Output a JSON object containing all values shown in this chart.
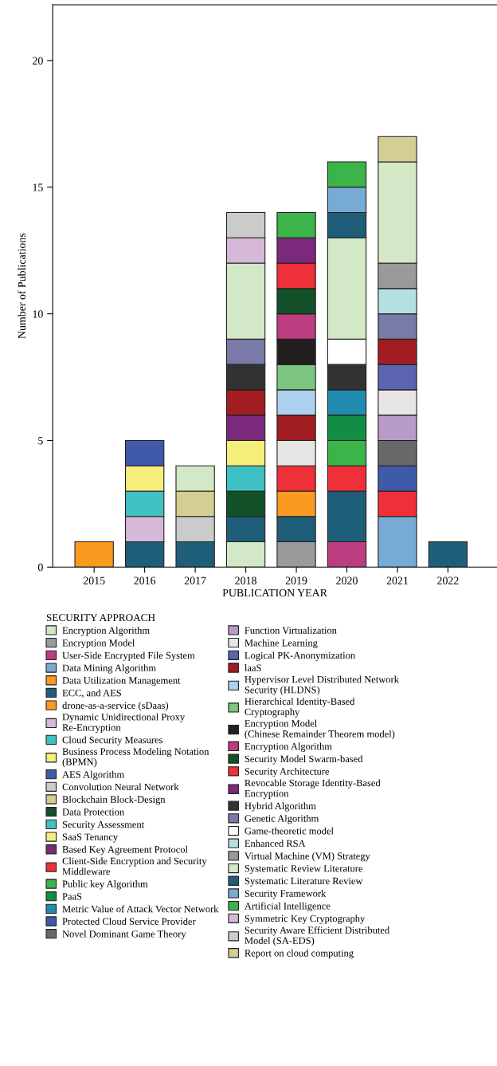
{
  "chart_data": {
    "type": "bar",
    "stacked": true,
    "xlabel": "PUBLICATION YEAR",
    "ylabel": "Number of Publications",
    "legend_title": "SECURITY APPROACH",
    "legend": "bottom",
    "categories": [
      "2015",
      "2016",
      "2017",
      "2018",
      "2019",
      "2020",
      "2021",
      "2022"
    ],
    "ylim": [
      0,
      22.2
    ],
    "yticks": [
      0,
      5,
      10,
      15,
      20
    ],
    "series": [
      {
        "name": "Encryption Algorithm",
        "color": "#d2e8c6",
        "values": [
          null,
          null,
          null,
          1,
          null,
          null,
          null,
          null
        ]
      },
      {
        "name": "Encryption Model",
        "color": "#9a9a9a",
        "values": [
          null,
          null,
          null,
          null,
          1,
          null,
          null,
          null
        ]
      },
      {
        "name": "User-Side Encrypted File System",
        "color": "#bc3d80",
        "values": [
          null,
          null,
          null,
          null,
          null,
          1,
          null,
          null
        ]
      },
      {
        "name": "Data Mining Algorithm",
        "color": "#78aad6",
        "values": [
          null,
          null,
          null,
          null,
          null,
          null,
          2,
          null
        ]
      },
      {
        "name": "Data Utilization Management",
        "color": "#f99b20",
        "values": [
          1,
          null,
          null,
          null,
          null,
          null,
          null,
          null
        ]
      },
      {
        "name": "ECC, and AES",
        "color": "#1f5e78",
        "values": [
          null,
          1,
          1,
          1,
          1,
          2,
          null,
          1
        ]
      },
      {
        "name": "drone-as-a-service (sDaas)",
        "color": "#f99b20",
        "values": [
          null,
          null,
          null,
          null,
          1,
          null,
          null,
          null
        ]
      },
      {
        "name": "Dynamic Unidirectional Proxy\nRe-Encryption",
        "color": "#d6b8d8",
        "values": [
          null,
          1,
          null,
          null,
          null,
          null,
          null,
          null
        ]
      },
      {
        "name": "Cloud Security Measures",
        "color": "#3fc1c4",
        "values": [
          null,
          1,
          null,
          null,
          null,
          null,
          null,
          null
        ]
      },
      {
        "name": "Business Process Modeling Notation\n(BPMN)",
        "color": "#f5ee7a",
        "values": [
          null,
          1,
          null,
          null,
          null,
          null,
          null,
          null
        ]
      },
      {
        "name": "AES Algorithm",
        "color": "#3f5aa8",
        "values": [
          null,
          1,
          null,
          null,
          null,
          null,
          null,
          null
        ]
      },
      {
        "name": "Convolution Neural Network",
        "color": "#cbcbcb",
        "values": [
          null,
          null,
          1,
          null,
          null,
          null,
          null,
          null
        ]
      },
      {
        "name": "Blockchain Block-Design",
        "color": "#d4cd94",
        "values": [
          null,
          null,
          1,
          null,
          null,
          null,
          null,
          null
        ]
      },
      {
        "name": "Data Protection",
        "color": "#125128",
        "values": [
          null,
          null,
          null,
          1,
          null,
          null,
          null,
          null
        ]
      },
      {
        "name": "Security Assessment",
        "color": "#3fc1c4",
        "values": [
          null,
          null,
          null,
          1,
          null,
          null,
          null,
          null
        ]
      },
      {
        "name": "SaaS Tenancy",
        "color": "#f5ee7a",
        "values": [
          null,
          null,
          null,
          1,
          null,
          null,
          null,
          null
        ]
      },
      {
        "name": "Based Key Agreement Protocol",
        "color": "#7b2a7b",
        "values": [
          null,
          null,
          null,
          1,
          null,
          null,
          null,
          null
        ]
      },
      {
        "name": "Client-Side Encryption and Security\nMiddleware",
        "color": "#ee3039",
        "values": [
          null,
          null,
          null,
          null,
          1,
          1,
          1,
          null
        ]
      },
      {
        "name": "Public key Algorithm",
        "color": "#3bb44a",
        "values": [
          null,
          null,
          null,
          null,
          null,
          1,
          null,
          null
        ]
      },
      {
        "name": "PaaS",
        "color": "#118e44",
        "values": [
          null,
          null,
          null,
          null,
          null,
          1,
          null,
          null
        ]
      },
      {
        "name": "Metric Value of Attack Vector Network",
        "color": "#228bb0",
        "values": [
          null,
          null,
          null,
          null,
          null,
          1,
          null,
          null
        ]
      },
      {
        "name": "Protected Cloud Service Provider",
        "color": "#3f5aa8",
        "values": [
          null,
          null,
          null,
          null,
          null,
          null,
          1,
          null
        ]
      },
      {
        "name": "Novel Dominant Game Theory",
        "color": "#676867",
        "values": [
          null,
          null,
          null,
          null,
          null,
          null,
          1,
          null
        ]
      },
      {
        "name": "Function Virtualization",
        "color": "#b89bc8",
        "values": [
          null,
          null,
          null,
          null,
          null,
          null,
          1,
          null
        ]
      },
      {
        "name": "Machine Learning",
        "color": "#e5e6e5",
        "values": [
          null,
          null,
          null,
          null,
          1,
          null,
          1,
          null
        ]
      },
      {
        "name": "Logical PK-Anonymization",
        "color": "#5a64b0",
        "values": [
          null,
          null,
          null,
          null,
          null,
          null,
          1,
          null
        ]
      },
      {
        "name": "laaS",
        "color": "#a21d22",
        "values": [
          null,
          null,
          null,
          1,
          1,
          null,
          1,
          null
        ]
      },
      {
        "name": "Hypervisor Level Distributed Network\nSecurity (HLDNS)",
        "color": "#acd0ee",
        "values": [
          null,
          null,
          null,
          null,
          1,
          null,
          null,
          null
        ]
      },
      {
        "name": "Hierarchical Identity-Based\nCryptography",
        "color": "#7dc67f",
        "values": [
          null,
          null,
          null,
          null,
          1,
          null,
          null,
          null
        ]
      },
      {
        "name": "Encryption Model\n(Chinese Remainder Theorem model)",
        "color": "#231f20",
        "values": [
          null,
          null,
          null,
          null,
          1,
          null,
          null,
          null
        ]
      },
      {
        "name": "Encryption Algorithm",
        "color": "#bc3d80",
        "values": [
          null,
          null,
          null,
          null,
          1,
          null,
          null,
          null
        ]
      },
      {
        "name": "Security Model Swarm-based",
        "color": "#125128",
        "values": [
          null,
          null,
          null,
          null,
          1,
          null,
          null,
          null
        ]
      },
      {
        "name": "Security Architecture",
        "color": "#ee3039",
        "values": [
          null,
          null,
          null,
          null,
          1,
          null,
          null,
          null
        ]
      },
      {
        "name": "Revocable Storage Identity-Based\nEncryption",
        "color": "#7b2a7b",
        "values": [
          null,
          null,
          null,
          null,
          1,
          null,
          null,
          null
        ]
      },
      {
        "name": "Hybrid Algorithm",
        "color": "#313333",
        "values": [
          null,
          null,
          null,
          1,
          null,
          1,
          null,
          null
        ]
      },
      {
        "name": "Genetic Algorithm",
        "color": "#7a7aa8",
        "values": [
          null,
          null,
          null,
          1,
          null,
          null,
          1,
          null
        ]
      },
      {
        "name": "Game-theoretic model",
        "color": "#ffffff",
        "values": [
          null,
          null,
          null,
          null,
          null,
          1,
          null,
          null
        ]
      },
      {
        "name": "Enhanced RSA",
        "color": "#b5e0e3",
        "values": [
          null,
          null,
          null,
          null,
          null,
          null,
          1,
          null
        ]
      },
      {
        "name": "Virtual Machine (VM) Strategy",
        "color": "#9a9a9a",
        "values": [
          null,
          null,
          null,
          null,
          null,
          null,
          1,
          null
        ]
      },
      {
        "name": "Systematic Review Literature",
        "color": "#d2e8c6",
        "values": [
          null,
          null,
          1,
          3,
          null,
          4,
          4,
          null
        ]
      },
      {
        "name": "Systematic Literature Review",
        "color": "#1f5e78",
        "values": [
          null,
          null,
          null,
          null,
          null,
          1,
          null,
          null
        ]
      },
      {
        "name": "Security Framework",
        "color": "#78aad6",
        "values": [
          null,
          null,
          null,
          null,
          null,
          1,
          null,
          null
        ]
      },
      {
        "name": "Artificial Intelligence",
        "color": "#3bb44a",
        "values": [
          null,
          null,
          null,
          null,
          1,
          1,
          null,
          null
        ]
      },
      {
        "name": "Symmetric Key Cryptography",
        "color": "#d6b8d8",
        "values": [
          null,
          null,
          null,
          1,
          null,
          null,
          null,
          null
        ]
      },
      {
        "name": "Security Aware Efficient Distributed\nModel (SA-EDS)",
        "color": "#cbcbcb",
        "values": [
          null,
          null,
          null,
          1,
          null,
          null,
          null,
          null
        ]
      },
      {
        "name": "Report on cloud computing",
        "color": "#d4cd94",
        "values": [
          null,
          null,
          null,
          null,
          null,
          null,
          1,
          null
        ]
      }
    ]
  }
}
